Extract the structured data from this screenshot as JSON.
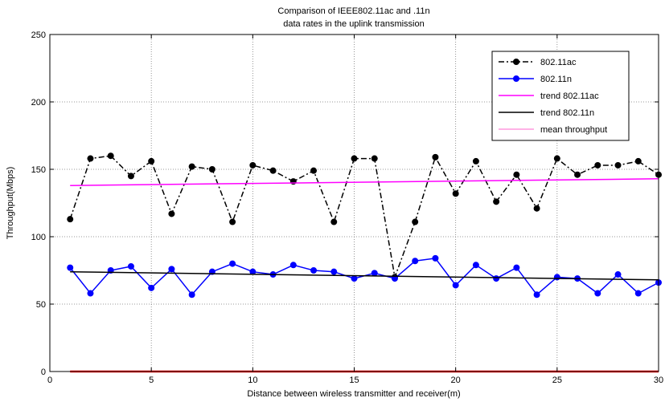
{
  "chart_data": {
    "type": "line",
    "title": "Comparison of IEEE802.11ac and .11n",
    "subtitle": "data rates in the uplink   transmission",
    "xlabel": "Distance between wireless transmitter and receiver(m)",
    "ylabel": "Throughput(Mbps)",
    "xlim": [
      0,
      30
    ],
    "ylim": [
      0,
      250
    ],
    "xticks": [
      0,
      5,
      10,
      15,
      20,
      25,
      30
    ],
    "yticks": [
      0,
      50,
      100,
      150,
      200,
      250
    ],
    "grid": true,
    "legend_position": "top-right",
    "series": [
      {
        "name": "802.11ac",
        "color": "#000000",
        "style": "dashdot",
        "marker": "circle",
        "x": [
          1,
          2,
          3,
          4,
          5,
          6,
          7,
          8,
          9,
          10,
          11,
          12,
          13,
          14,
          15,
          16,
          17,
          18,
          19,
          20,
          21,
          22,
          23,
          24,
          25,
          26,
          27,
          28,
          29,
          30
        ],
        "y": [
          113,
          158,
          160,
          145,
          156,
          117,
          152,
          150,
          111,
          153,
          149,
          141,
          149,
          111,
          158,
          158,
          70,
          111,
          159,
          132,
          156,
          126,
          146,
          121,
          158,
          146,
          153,
          153,
          156,
          146
        ]
      },
      {
        "name": "802.11n",
        "color": "#0000ff",
        "style": "solid",
        "marker": "circle",
        "x": [
          1,
          2,
          3,
          4,
          5,
          6,
          7,
          8,
          9,
          10,
          11,
          12,
          13,
          14,
          15,
          16,
          17,
          18,
          19,
          20,
          21,
          22,
          23,
          24,
          25,
          26,
          27,
          28,
          29,
          30
        ],
        "y": [
          77,
          58,
          75,
          78,
          62,
          76,
          57,
          74,
          80,
          74,
          72,
          79,
          75,
          74,
          69,
          73,
          69,
          82,
          84,
          64,
          79,
          69,
          77,
          57,
          70,
          69,
          58,
          72,
          58,
          66
        ]
      },
      {
        "name": "trend 802.11ac",
        "color": "#ff00ff",
        "style": "solid",
        "marker": "none",
        "x": [
          1,
          30
        ],
        "y": [
          138,
          143
        ]
      },
      {
        "name": "trend 802.11n",
        "color": "#000000",
        "style": "solid",
        "marker": "none",
        "x": [
          1,
          30
        ],
        "y": [
          74,
          68
        ]
      },
      {
        "name": "mean throughput",
        "color": "#ff0000",
        "style": "solid",
        "marker": "none",
        "x": [
          1,
          30
        ],
        "y": [
          0,
          0
        ]
      }
    ]
  }
}
